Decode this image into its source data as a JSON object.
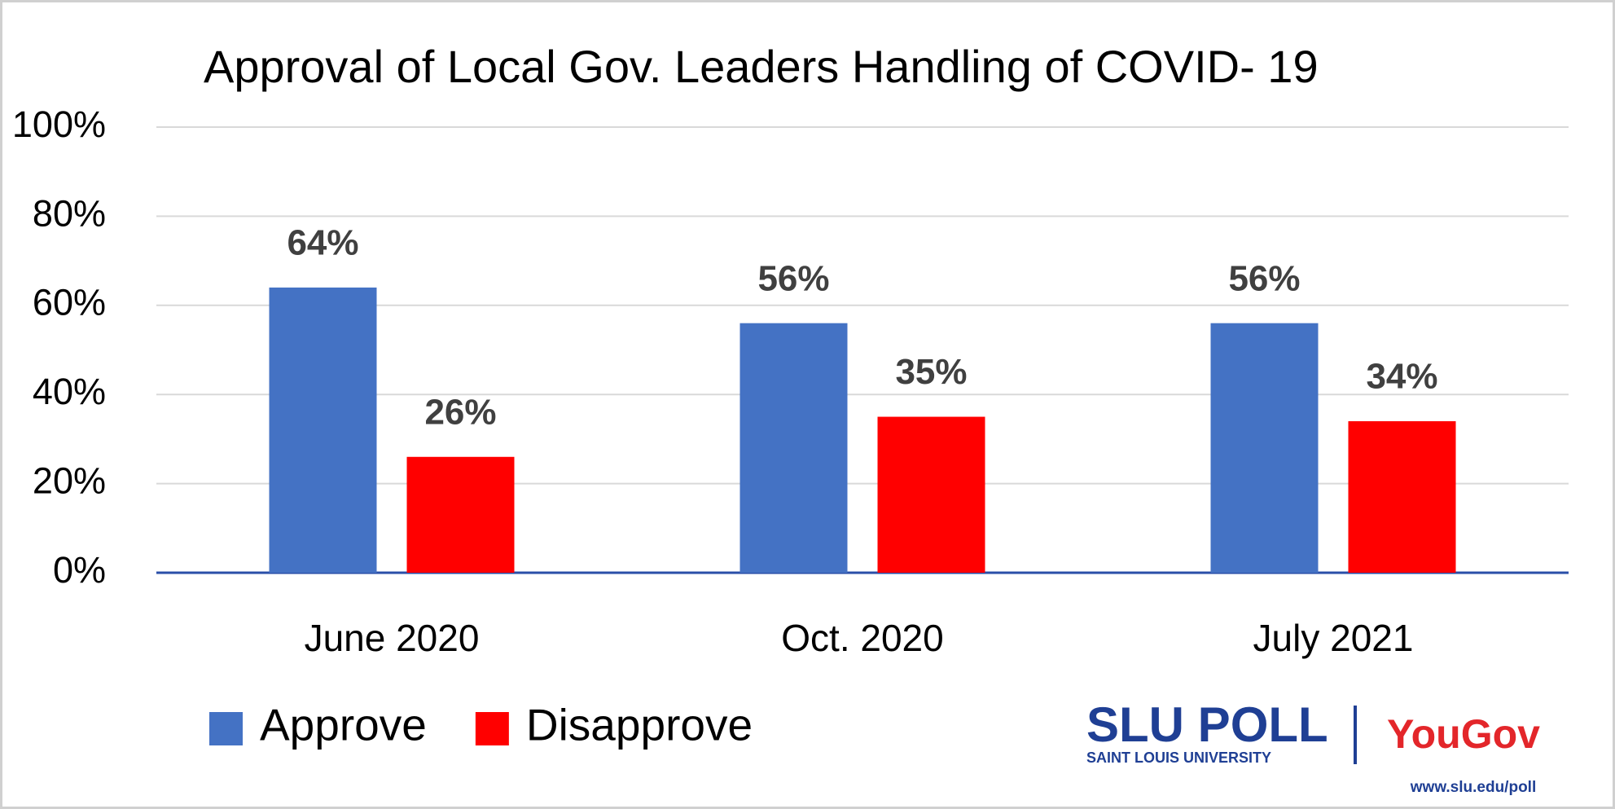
{
  "chart_data": {
    "type": "bar",
    "title": "Approval of Local Gov. Leaders Handling of COVID- 19",
    "categories": [
      "June 2020",
      "Oct. 2020",
      "July 2021"
    ],
    "series": [
      {
        "name": "Approve",
        "color": "#4472c4",
        "values": [
          64,
          56,
          56
        ],
        "value_labels": [
          "64%",
          "56%",
          "56%"
        ]
      },
      {
        "name": "Disapprove",
        "color": "#ff0000",
        "values": [
          26,
          35,
          34
        ],
        "value_labels": [
          "26%",
          "35%",
          "34%"
        ]
      }
    ],
    "ylim": [
      0,
      100
    ],
    "yticks": [
      {
        "value": 0,
        "label": "0%"
      },
      {
        "value": 20,
        "label": "20%"
      },
      {
        "value": 40,
        "label": "40%"
      },
      {
        "value": 60,
        "label": "60%"
      },
      {
        "value": 80,
        "label": "80%"
      },
      {
        "value": 100,
        "label": "100%"
      }
    ],
    "grid": true,
    "legend": "bottom-left"
  },
  "branding": {
    "logo": "SLU POLL",
    "university": "SAINT LOUIS UNIVERSITY",
    "partner": "YouGov",
    "url": "www.slu.edu/poll"
  }
}
